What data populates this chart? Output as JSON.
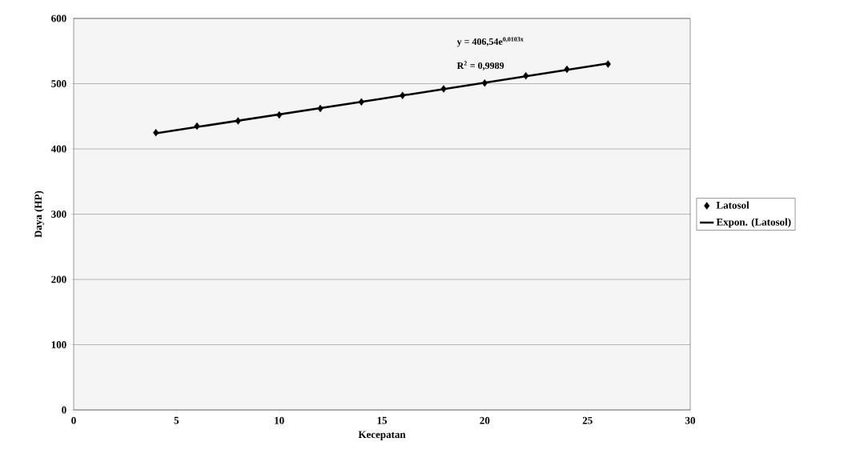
{
  "chart_data": {
    "type": "scatter",
    "xlabel": "Kecepatan",
    "ylabel": "Daya (HP)",
    "xlim": [
      0,
      30
    ],
    "xticks": [
      0,
      5,
      10,
      15,
      20,
      25,
      30
    ],
    "ylim": [
      0,
      600
    ],
    "yticks": [
      0,
      100,
      200,
      300,
      400,
      500,
      600
    ],
    "grid": "y",
    "legend": "right",
    "marker": "diamond",
    "series": [
      {
        "name": "Latosol",
        "color": "#000000",
        "x": [
          4,
          6,
          8,
          10,
          12,
          14,
          16,
          18,
          20,
          22,
          24,
          26
        ],
        "values": [
          425,
          435,
          443,
          452,
          462,
          472,
          482,
          492,
          501,
          512,
          522,
          530
        ]
      },
      {
        "name": "Expon. (Latosol)",
        "type": "line",
        "color": "#000000",
        "marker": "none",
        "line_style": "solid",
        "x": [
          4,
          15,
          26
        ],
        "values": [
          424,
          477,
          531
        ]
      }
    ],
    "annotations": [
      "y = 406,54e$^{0,0103x}$",
      "R$^{2}$ = 0,9989"
    ]
  }
}
